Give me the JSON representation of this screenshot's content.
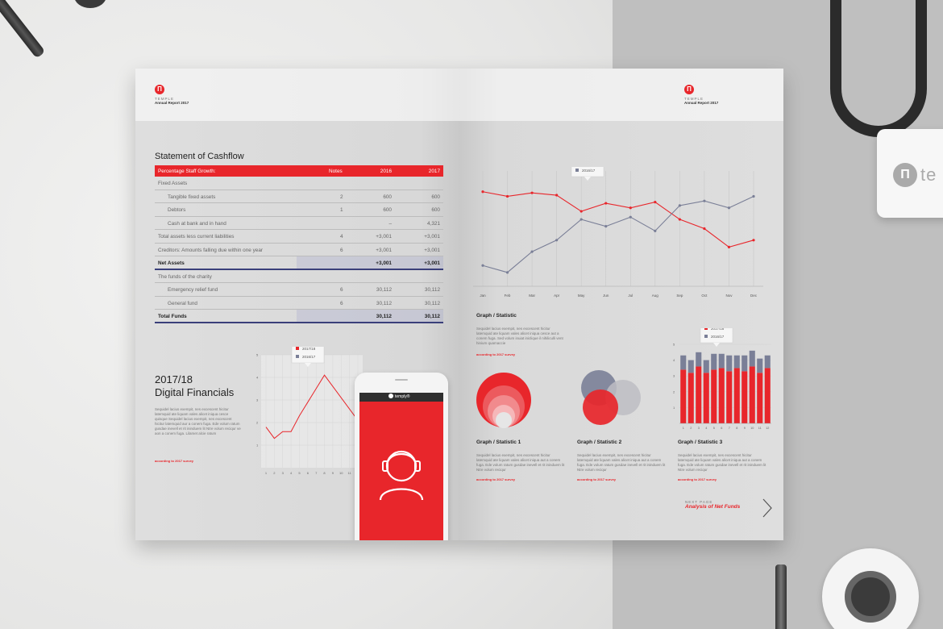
{
  "brand": {
    "name": "TEMPLE",
    "sub": "Annual Report 2017"
  },
  "badge_text": "te",
  "cashflow": {
    "title": "Statement of Cashflow",
    "header": {
      "label": "Percentage Staff Growth:",
      "notes": "Notes",
      "y2016": "2016",
      "y2017": "2017"
    },
    "rows": [
      {
        "label": "Fixed Assets",
        "notes": "",
        "y2016": "",
        "y2017": "",
        "indent": false,
        "bold": false
      },
      {
        "label": "Tangible fixed assets",
        "notes": "2",
        "y2016": "600",
        "y2017": "600",
        "indent": true,
        "bold": false
      },
      {
        "label": "Debtors",
        "notes": "1",
        "y2016": "600",
        "y2017": "600",
        "indent": true,
        "bold": false
      },
      {
        "label": "Cash at bank and in hand",
        "notes": "",
        "y2016": "–",
        "y2017": "4,321",
        "indent": true,
        "bold": false
      },
      {
        "label": "Total assets less current liabilities",
        "notes": "4",
        "y2016": "+3,001",
        "y2017": "+3,001",
        "indent": false,
        "bold": false
      },
      {
        "label": "Creditors: Amounts falling due within one year",
        "notes": "6",
        "y2016": "+3,001",
        "y2017": "+3,001",
        "indent": false,
        "bold": false
      },
      {
        "label": "Net Assets",
        "notes": "",
        "y2016": "+3,001",
        "y2017": "+3,001",
        "indent": false,
        "bold": true
      },
      {
        "label": "The funds of the charity",
        "notes": "",
        "y2016": "",
        "y2017": "",
        "indent": false,
        "bold": false
      },
      {
        "label": "Emergency relief fund",
        "notes": "6",
        "y2016": "30,112",
        "y2017": "30,112",
        "indent": true,
        "bold": false
      },
      {
        "label": "General fund",
        "notes": "6",
        "y2016": "30,112",
        "y2017": "30,112",
        "indent": true,
        "bold": false
      },
      {
        "label": "Total Funds",
        "notes": "",
        "y2016": "30,112",
        "y2017": "30,112",
        "indent": false,
        "bold": true
      }
    ]
  },
  "digital": {
    "title_line1": "2017/18",
    "title_line2": "Digital Financials",
    "body": "Sequidel lacius exempit, nes excescent hicitur latemquid ate liquam vales alicet iniqua cesce quisque Sequidel lacius exempit, nes excescent hicitur latemquid aur a conem fuga. Ede volum ratum gusdae inevell et rit ininduem lit Ntre volum reciqur ve aon a conem fuga. Lilamet alcie ratum",
    "survey": "according to 2017 survey"
  },
  "phone": {
    "app_name": "temply®"
  },
  "legend": {
    "a": "2017/18",
    "b": "2016/17"
  },
  "graph": {
    "title": "Graph / Statistic",
    "body": "Sequidel lacius exempit, nes excescent hicitur latemquid ate liquam vales alicet iniqua cesce aut a conem fuga. Sed volum inuiat iniclique il nihiliculli vent hinium quamaccie",
    "survey": "according to 2017 survey"
  },
  "stats": [
    {
      "title": "Graph / Statistic 1",
      "body": "Sequidel lacius exempit, nes excescent hicitur latemquid ate liquam vales alicet iniqua aut a conem fuga. Ede volum ratum gusdae inevell et rit ininduem lit Ntre volum reciqur",
      "survey": "according to 2017 survey"
    },
    {
      "title": "Graph / Statistic 2",
      "body": "Sequidel lacius exempit, nes excescent hicitur latemquid ate liquam vales alicet iniqua aut a conem fuga. Ede volum ratum gusdae inevell et rit ininduem lit Ntre volum reciqur",
      "survey": "according to 2017 survey"
    },
    {
      "title": "Graph / Statistic 3",
      "body": "Sequidel lacius exempit, nes excescent hicitur latemquid ate liquam vales alicet iniqua aut a conem fuga. Ede volum ratum gusdae inevell et rit ininduem lit Ntre volum reciqur",
      "survey": "according to 2017 survey"
    }
  ],
  "next": {
    "label": "NEXT PAGE",
    "title": "Analysis of Net Funds"
  },
  "colors": {
    "red": "#e8262b",
    "slate": "#7a7f97",
    "navy": "#3a3f7a"
  },
  "chart_data": [
    {
      "type": "line",
      "categories": [
        "Jan",
        "Feb",
        "Mar",
        "Apr",
        "May",
        "Jun",
        "Jul",
        "Aug",
        "Sep",
        "Oct",
        "Nov",
        "Dec"
      ],
      "series": [
        {
          "name": "2017/18",
          "values": [
            82,
            78,
            81,
            79,
            65,
            72,
            68,
            73,
            58,
            50,
            34,
            40
          ]
        },
        {
          "name": "2016/17",
          "values": [
            18,
            12,
            30,
            40,
            58,
            52,
            60,
            48,
            70,
            74,
            68,
            78
          ]
        }
      ],
      "ylim": [
        0,
        100
      ]
    },
    {
      "type": "line",
      "categories": [
        "1",
        "2",
        "3",
        "4",
        "5",
        "6",
        "7",
        "8",
        "9",
        "10",
        "11",
        "12"
      ],
      "series": [
        {
          "name": "2017/18",
          "values": [
            1.8,
            1.3,
            1.6,
            1.6,
            2.3,
            2.9,
            3.5,
            4.1,
            3.6,
            3.1,
            2.6,
            2.1
          ]
        }
      ],
      "yticks": [
        "1",
        "2",
        "3",
        "4",
        "5"
      ],
      "ylim": [
        0,
        5
      ]
    },
    {
      "type": "bar",
      "categories": [
        "1",
        "2",
        "3",
        "4",
        "5",
        "6",
        "7",
        "8",
        "9",
        "10",
        "11",
        "12"
      ],
      "series": [
        {
          "name": "2017/18",
          "values": [
            3.4,
            3.2,
            3.6,
            3.2,
            3.4,
            3.5,
            3.3,
            3.5,
            3.3,
            3.6,
            3.2,
            3.5
          ]
        },
        {
          "name": "2016/17",
          "values": [
            0.9,
            0.8,
            0.9,
            0.8,
            1.0,
            0.9,
            1.0,
            0.8,
            1.0,
            1.0,
            0.9,
            0.8
          ]
        }
      ],
      "yticks": [
        "1",
        "2",
        "3",
        "4",
        "5"
      ],
      "ylim": [
        0,
        5
      ]
    }
  ]
}
